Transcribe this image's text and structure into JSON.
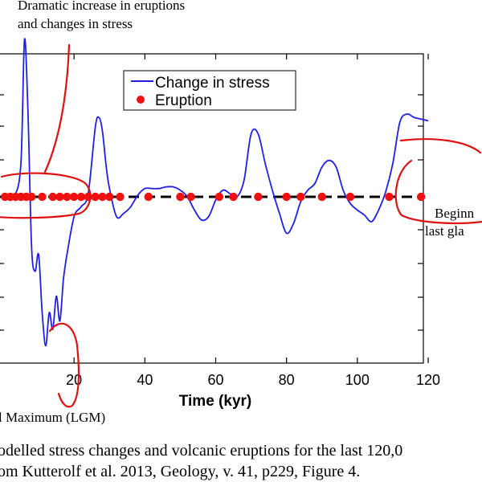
{
  "annotations": {
    "top_line1": "Dramatic increase in eruptions",
    "top_line2": "and changes in stress",
    "right_line1": "Beginn",
    "right_line2": "last gla",
    "bottom": "l Maximum (LGM)"
  },
  "caption": {
    "line1": "odelled stress changes and volcanic eruptions for the last 120,0",
    "line2": "om Kutterolf et al. 2013, Geology, v. 41, p229, Figure 4."
  },
  "colors": {
    "stress": "#1f1fe6",
    "eruption": "#ee1111",
    "annotation": "#dd1111",
    "baseline": "#000000"
  },
  "chart_data": {
    "type": "line",
    "xlabel": "Time (kyr)",
    "xlim": [
      0,
      120
    ],
    "ylim": [
      -1,
      1
    ],
    "xticks": [
      20,
      40,
      60,
      80,
      100,
      120
    ],
    "grid": false,
    "legend": {
      "position": "top-right",
      "entries": [
        {
          "label": "Change in stress",
          "kind": "line",
          "color": "#1f1fe6"
        },
        {
          "label": "Eruption",
          "kind": "marker",
          "color": "#ee1111"
        }
      ]
    },
    "series": [
      {
        "name": "Change in stress",
        "kind": "line",
        "x": [
          0,
          3,
          5,
          6,
          7,
          8,
          9,
          10,
          11,
          12,
          13,
          14,
          15,
          16,
          17,
          18,
          20,
          22,
          24,
          26,
          27,
          28,
          29,
          30,
          32,
          34,
          36,
          38,
          40,
          42,
          44,
          46,
          48,
          50,
          52,
          54,
          56,
          58,
          60,
          62,
          64,
          66,
          68,
          70,
          72,
          74,
          76,
          78,
          80,
          82,
          84,
          86,
          88,
          90,
          92,
          94,
          96,
          98,
          100,
          102,
          104,
          106,
          108,
          110,
          112,
          114,
          116,
          118,
          120
        ],
        "y": [
          0,
          0,
          0.2,
          0.95,
          0.5,
          -0.3,
          -0.45,
          -0.35,
          -0.7,
          -0.9,
          -0.7,
          -0.8,
          -0.6,
          -0.75,
          -0.5,
          -0.35,
          -0.12,
          -0.06,
          0.02,
          0.42,
          0.48,
          0.4,
          0.2,
          0.05,
          -0.12,
          -0.1,
          -0.06,
          0.01,
          0.05,
          0.05,
          0.05,
          0.06,
          0.06,
          0.04,
          0,
          -0.08,
          -0.14,
          -0.12,
          -0.02,
          0.04,
          0.02,
          0,
          0.1,
          0.38,
          0.38,
          0.2,
          0.04,
          -0.1,
          -0.22,
          -0.16,
          -0.03,
          0.04,
          0.08,
          0.18,
          0.22,
          0.18,
          0.04,
          -0.04,
          -0.08,
          -0.11,
          -0.15,
          -0.08,
          0.03,
          0.2,
          0.45,
          0.5,
          0.48,
          0.47,
          0.46
        ]
      },
      {
        "name": "Eruption",
        "kind": "scatter",
        "x": [
          0.5,
          2,
          3.5,
          5,
          6.5,
          8,
          11,
          14,
          16,
          18,
          20,
          22,
          24,
          26,
          28,
          30,
          33,
          41,
          50,
          53,
          61,
          65,
          72,
          80,
          84,
          90,
          98,
          109,
          118
        ],
        "y": [
          0,
          0,
          0,
          0,
          0,
          0,
          0,
          0,
          0,
          0,
          0,
          0,
          0,
          0,
          0,
          0,
          0,
          0,
          0,
          0,
          0,
          0,
          0,
          0,
          0,
          0,
          0,
          0,
          0
        ]
      }
    ]
  }
}
